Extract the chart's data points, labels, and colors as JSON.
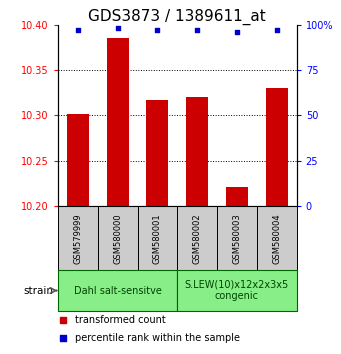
{
  "title": "GDS3873 / 1389611_at",
  "samples": [
    "GSM579999",
    "GSM580000",
    "GSM580001",
    "GSM580002",
    "GSM580003",
    "GSM580004"
  ],
  "transformed_counts": [
    10.302,
    10.385,
    10.317,
    10.32,
    10.221,
    10.33
  ],
  "percentile_ranks": [
    97,
    98,
    97,
    97,
    96,
    97
  ],
  "ylim_left": [
    10.2,
    10.4
  ],
  "ylim_right": [
    0,
    100
  ],
  "yticks_left": [
    10.2,
    10.25,
    10.3,
    10.35,
    10.4
  ],
  "yticks_right": [
    0,
    25,
    50,
    75,
    100
  ],
  "bar_color": "#cc0000",
  "dot_color": "#0000cc",
  "bar_width": 0.55,
  "groups": [
    {
      "label": "Dahl salt-sensitve",
      "indices": [
        0,
        1,
        2
      ],
      "color": "#88ee88"
    },
    {
      "label": "S.LEW(10)x12x2x3x5\ncongenic",
      "indices": [
        3,
        4,
        5
      ],
      "color": "#88ee88"
    }
  ],
  "xlabel_area_color": "#cccccc",
  "strain_label": "strain",
  "legend_items": [
    {
      "color": "#cc0000",
      "label": "transformed count"
    },
    {
      "color": "#0000cc",
      "label": "percentile rank within the sample"
    }
  ],
  "title_fontsize": 11,
  "tick_fontsize": 7,
  "sample_fontsize": 6,
  "group_fontsize": 7,
  "legend_fontsize": 7
}
